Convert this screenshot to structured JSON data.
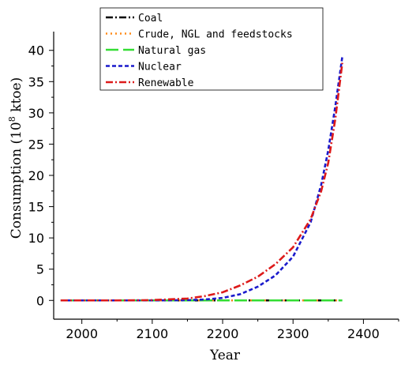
{
  "chart_data": {
    "type": "line",
    "xlabel": "Year",
    "ylabel": "Consumption (10^8 ktoe)",
    "ylabel_parts": {
      "pre": "Consumption (10",
      "sup": "8",
      "post": " ktoe)"
    },
    "xlim": [
      1960,
      2450
    ],
    "ylim": [
      -3,
      43
    ],
    "xticks": [
      2000,
      2100,
      2200,
      2300,
      2400
    ],
    "yticks": [
      0,
      5,
      10,
      15,
      20,
      25,
      30,
      35,
      40
    ],
    "legend_position": "top-center",
    "series": [
      {
        "name": "Coal",
        "color": "#000000",
        "dash": "dashdot",
        "x": [
          1970,
          2000,
          2050,
          2100,
          2150,
          2200,
          2250,
          2300,
          2350,
          2370
        ],
        "y": [
          0,
          0,
          0,
          0,
          0,
          0,
          0,
          0,
          0,
          0
        ]
      },
      {
        "name": "Crude, NGL and feedstocks",
        "color": "#ff8c1a",
        "dash": "dot",
        "x": [
          1970,
          2000,
          2050,
          2100,
          2150,
          2200,
          2250,
          2300,
          2350,
          2370
        ],
        "y": [
          0,
          0,
          0,
          0,
          0,
          0,
          0,
          0,
          0,
          0
        ]
      },
      {
        "name": "Natural gas",
        "color": "#33dd33",
        "dash": "longdash",
        "x": [
          1970,
          2000,
          2050,
          2100,
          2150,
          2200,
          2250,
          2300,
          2350,
          2370
        ],
        "y": [
          0,
          0,
          0,
          0,
          0,
          0,
          0,
          0,
          0,
          0
        ]
      },
      {
        "name": "Nuclear",
        "color": "#1a1acc",
        "dash": "dash",
        "x": [
          1970,
          2000,
          2050,
          2100,
          2150,
          2175,
          2200,
          2225,
          2250,
          2275,
          2300,
          2325,
          2340,
          2350,
          2360,
          2370
        ],
        "y": [
          0,
          0,
          0,
          0,
          0.05,
          0.15,
          0.4,
          1.0,
          2.2,
          4.0,
          7.0,
          12.5,
          18.5,
          24.0,
          31.0,
          39.0
        ]
      },
      {
        "name": "Renewable",
        "color": "#dd1a1a",
        "dash": "dashdot",
        "x": [
          1970,
          2000,
          2050,
          2100,
          2150,
          2175,
          2200,
          2225,
          2250,
          2275,
          2300,
          2325,
          2340,
          2350,
          2360,
          2370
        ],
        "y": [
          0,
          0,
          0,
          0.05,
          0.3,
          0.7,
          1.3,
          2.4,
          3.8,
          5.8,
          8.5,
          13.0,
          17.5,
          22.0,
          29.0,
          38.0
        ]
      }
    ]
  }
}
